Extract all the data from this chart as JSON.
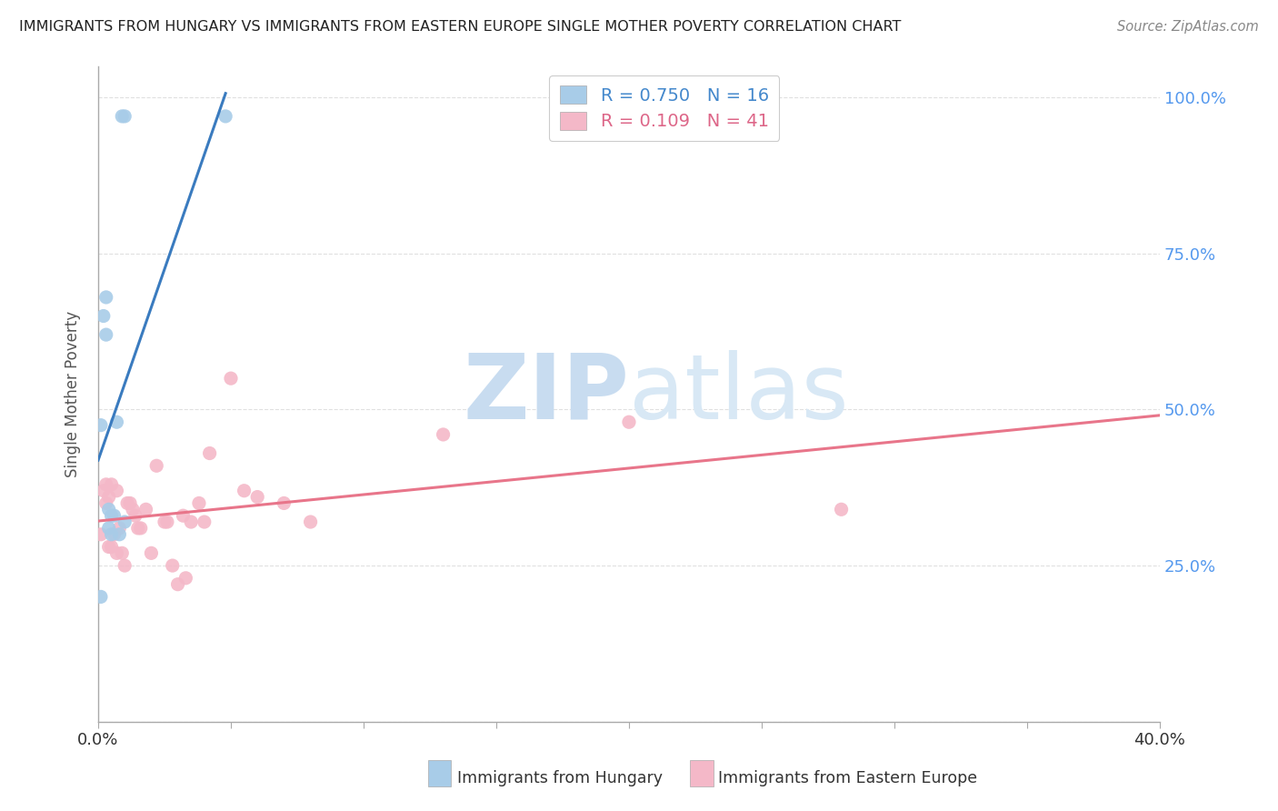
{
  "title": "IMMIGRANTS FROM HUNGARY VS IMMIGRANTS FROM EASTERN EUROPE SINGLE MOTHER POVERTY CORRELATION CHART",
  "source": "Source: ZipAtlas.com",
  "ylabel": "Single Mother Poverty",
  "legend_label1": "Immigrants from Hungary",
  "legend_label2": "Immigrants from Eastern Europe",
  "R1": 0.75,
  "N1": 16,
  "R2": 0.109,
  "N2": 41,
  "blue_color": "#a8cce8",
  "pink_color": "#f4b8c8",
  "blue_line_color": "#3a7bbf",
  "pink_line_color": "#e8758a",
  "xlim": [
    0.0,
    0.4
  ],
  "ylim": [
    0.0,
    1.05
  ],
  "x_ticks": [
    0.0,
    0.05,
    0.1,
    0.15,
    0.2,
    0.25,
    0.3,
    0.35,
    0.4
  ],
  "y_ticks_right": [
    0.0,
    0.25,
    0.5,
    0.75,
    1.0
  ],
  "y_tick_labels_right": [
    "",
    "25.0%",
    "50.0%",
    "75.0%",
    "100.0%"
  ],
  "blue_x": [
    0.001,
    0.002,
    0.003,
    0.003,
    0.004,
    0.004,
    0.005,
    0.005,
    0.006,
    0.007,
    0.008,
    0.009,
    0.01,
    0.01,
    0.048,
    0.001
  ],
  "blue_y": [
    0.475,
    0.65,
    0.62,
    0.68,
    0.31,
    0.34,
    0.3,
    0.33,
    0.33,
    0.48,
    0.3,
    0.97,
    0.97,
    0.32,
    0.97,
    0.2
  ],
  "pink_x": [
    0.001,
    0.002,
    0.003,
    0.003,
    0.004,
    0.004,
    0.005,
    0.005,
    0.006,
    0.007,
    0.007,
    0.008,
    0.009,
    0.01,
    0.011,
    0.012,
    0.013,
    0.014,
    0.015,
    0.016,
    0.018,
    0.02,
    0.022,
    0.025,
    0.026,
    0.028,
    0.03,
    0.032,
    0.033,
    0.035,
    0.038,
    0.04,
    0.042,
    0.05,
    0.055,
    0.06,
    0.07,
    0.08,
    0.13,
    0.2,
    0.28
  ],
  "pink_y": [
    0.3,
    0.37,
    0.38,
    0.35,
    0.36,
    0.28,
    0.28,
    0.38,
    0.3,
    0.27,
    0.37,
    0.31,
    0.27,
    0.25,
    0.35,
    0.35,
    0.34,
    0.33,
    0.31,
    0.31,
    0.34,
    0.27,
    0.41,
    0.32,
    0.32,
    0.25,
    0.22,
    0.33,
    0.23,
    0.32,
    0.35,
    0.32,
    0.43,
    0.55,
    0.37,
    0.36,
    0.35,
    0.32,
    0.46,
    0.48,
    0.34
  ],
  "watermark_zip": "ZIP",
  "watermark_atlas": "atlas",
  "watermark_color": "#ddeeff",
  "background_color": "#ffffff",
  "grid_color": "#e0e0e0"
}
